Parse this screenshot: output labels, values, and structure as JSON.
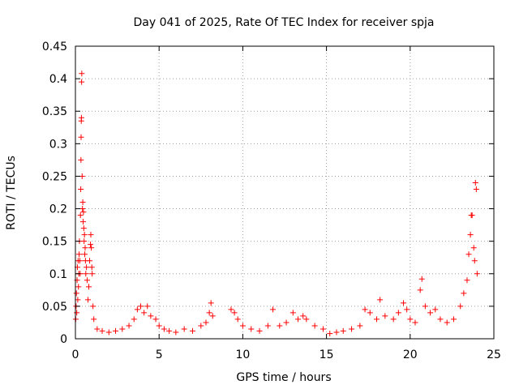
{
  "chart_data": {
    "type": "scatter",
    "title": "Day 041 of 2025, Rate Of TEC Index for receiver spja",
    "xlabel": "GPS time / hours",
    "ylabel": "ROTI / TECUs",
    "xlim": [
      0,
      25
    ],
    "ylim": [
      0,
      0.45
    ],
    "x_ticks": [
      0,
      5,
      10,
      15,
      20,
      25
    ],
    "x_tick_labels": [
      "0",
      "5",
      "10",
      "15",
      "20",
      "25"
    ],
    "y_ticks": [
      0,
      0.05,
      0.1,
      0.15,
      0.2,
      0.25,
      0.3,
      0.35,
      0.4,
      0.45
    ],
    "y_tick_labels": [
      "0",
      "0.05",
      "0.1",
      "0.15",
      "0.2",
      "0.25",
      "0.3",
      "0.35",
      "0.4",
      "0.45"
    ],
    "grid": true,
    "marker": "plus",
    "color": "#ff0000",
    "series": [
      {
        "values": [
          [
            0.02,
            0.03
          ],
          [
            0.04,
            0.05
          ],
          [
            0.06,
            0.07
          ],
          [
            0.08,
            0.04
          ],
          [
            0.1,
            0.09
          ],
          [
            0.12,
            0.11
          ],
          [
            0.14,
            0.06
          ],
          [
            0.16,
            0.12
          ],
          [
            0.18,
            0.08
          ],
          [
            0.2,
            0.1
          ],
          [
            0.22,
            0.13
          ],
          [
            0.24,
            0.15
          ],
          [
            0.26,
            0.12
          ],
          [
            0.28,
            0.1
          ],
          [
            0.3,
            0.19
          ],
          [
            0.32,
            0.23
          ],
          [
            0.33,
            0.275
          ],
          [
            0.34,
            0.31
          ],
          [
            0.35,
            0.335
          ],
          [
            0.36,
            0.34
          ],
          [
            0.37,
            0.395
          ],
          [
            0.38,
            0.408
          ],
          [
            0.4,
            0.25
          ],
          [
            0.42,
            0.2
          ],
          [
            0.44,
            0.21
          ],
          [
            0.46,
            0.18
          ],
          [
            0.48,
            0.195
          ],
          [
            0.5,
            0.17
          ],
          [
            0.52,
            0.15
          ],
          [
            0.54,
            0.16
          ],
          [
            0.56,
            0.13
          ],
          [
            0.58,
            0.14
          ],
          [
            0.6,
            0.12
          ],
          [
            0.62,
            0.1
          ],
          [
            0.66,
            0.11
          ],
          [
            0.7,
            0.09
          ],
          [
            0.75,
            0.06
          ],
          [
            0.8,
            0.08
          ],
          [
            0.85,
            0.12
          ],
          [
            0.9,
            0.145
          ],
          [
            0.92,
            0.16
          ],
          [
            0.95,
            0.14
          ],
          [
            0.98,
            0.11
          ],
          [
            1.0,
            0.1
          ],
          [
            1.05,
            0.05
          ],
          [
            1.1,
            0.03
          ],
          [
            1.3,
            0.015
          ],
          [
            1.6,
            0.012
          ],
          [
            2.0,
            0.01
          ],
          [
            2.4,
            0.012
          ],
          [
            2.8,
            0.015
          ],
          [
            3.2,
            0.02
          ],
          [
            3.5,
            0.03
          ],
          [
            3.7,
            0.045
          ],
          [
            3.9,
            0.05
          ],
          [
            4.1,
            0.04
          ],
          [
            4.3,
            0.05
          ],
          [
            4.5,
            0.035
          ],
          [
            4.8,
            0.03
          ],
          [
            5.0,
            0.02
          ],
          [
            5.3,
            0.015
          ],
          [
            5.6,
            0.012
          ],
          [
            6.0,
            0.01
          ],
          [
            6.5,
            0.015
          ],
          [
            7.0,
            0.012
          ],
          [
            7.5,
            0.02
          ],
          [
            7.8,
            0.025
          ],
          [
            8.0,
            0.04
          ],
          [
            8.1,
            0.055
          ],
          [
            8.2,
            0.035
          ],
          [
            9.3,
            0.045
          ],
          [
            9.5,
            0.04
          ],
          [
            9.7,
            0.03
          ],
          [
            10.0,
            0.02
          ],
          [
            10.5,
            0.015
          ],
          [
            11.0,
            0.012
          ],
          [
            11.5,
            0.02
          ],
          [
            11.8,
            0.045
          ],
          [
            12.2,
            0.02
          ],
          [
            12.6,
            0.025
          ],
          [
            13.0,
            0.04
          ],
          [
            13.3,
            0.03
          ],
          [
            13.6,
            0.035
          ],
          [
            13.8,
            0.03
          ],
          [
            14.3,
            0.02
          ],
          [
            14.8,
            0.015
          ],
          [
            15.2,
            0.008
          ],
          [
            15.6,
            0.01
          ],
          [
            16.0,
            0.012
          ],
          [
            16.5,
            0.015
          ],
          [
            17.0,
            0.02
          ],
          [
            17.3,
            0.045
          ],
          [
            17.6,
            0.04
          ],
          [
            18.0,
            0.03
          ],
          [
            18.2,
            0.06
          ],
          [
            18.5,
            0.035
          ],
          [
            19.0,
            0.03
          ],
          [
            19.3,
            0.04
          ],
          [
            19.6,
            0.055
          ],
          [
            19.8,
            0.045
          ],
          [
            20.0,
            0.03
          ],
          [
            20.3,
            0.025
          ],
          [
            20.6,
            0.075
          ],
          [
            20.7,
            0.092
          ],
          [
            20.9,
            0.05
          ],
          [
            21.2,
            0.04
          ],
          [
            21.5,
            0.045
          ],
          [
            21.8,
            0.03
          ],
          [
            22.2,
            0.025
          ],
          [
            22.6,
            0.03
          ],
          [
            23.0,
            0.05
          ],
          [
            23.2,
            0.07
          ],
          [
            23.4,
            0.09
          ],
          [
            23.5,
            0.13
          ],
          [
            23.6,
            0.16
          ],
          [
            23.65,
            0.19
          ],
          [
            23.7,
            0.19
          ],
          [
            23.8,
            0.14
          ],
          [
            23.85,
            0.12
          ],
          [
            23.9,
            0.24
          ],
          [
            23.95,
            0.23
          ],
          [
            24.0,
            0.1
          ]
        ]
      }
    ]
  }
}
